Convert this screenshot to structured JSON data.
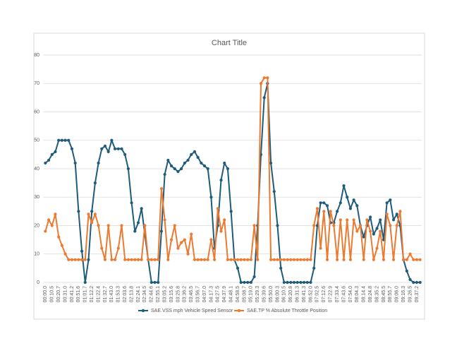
{
  "chart_data": {
    "type": "line",
    "title": "Chart Title",
    "categories": [
      "00:00.0",
      null,
      "00:10.5",
      null,
      "00:20.7",
      null,
      "00:31.0",
      null,
      "00:41.2",
      null,
      "00:51.6",
      null,
      "01:01.7",
      null,
      "01:12.2",
      null,
      "01:22.4",
      null,
      "01:32.7",
      null,
      "01:43.0",
      null,
      "01:53.3",
      null,
      "02:03.6",
      null,
      "02:13.8",
      null,
      "02:24.1",
      null,
      "02:34.5",
      null,
      "02:44.6",
      null,
      "02:55.1",
      null,
      "03:05.2",
      null,
      "03:15.6",
      null,
      "03:25.8",
      null,
      "03:36.2",
      null,
      "03:46.5",
      null,
      "03:56.7",
      null,
      "04:07.0",
      null,
      "04:17.3",
      null,
      "04:27.5",
      null,
      "04:37.9",
      null,
      "04:48.1",
      null,
      "04:58.5",
      null,
      "05:08.7",
      null,
      "05:19.0",
      null,
      "05:29.3",
      null,
      "05:39.6",
      null,
      "05:50.0",
      null,
      "06:00.3",
      null,
      "06:10.5",
      null,
      "06:20.8",
      null,
      "06:31.3",
      null,
      "06:41.3",
      null,
      "06:52.0",
      null,
      "07:02.5",
      null,
      "07:12.6",
      null,
      "07:22.9",
      null,
      "07:33.4",
      null,
      "07:43.6",
      null,
      "07:54.0",
      null,
      "08:04.3",
      null,
      "08:14.4",
      null,
      "08:24.8",
      null,
      "08:35.2",
      null,
      "08:45.5",
      null,
      "08:55.7",
      null,
      "09:06.0",
      null,
      "09:16.3",
      null,
      "09:26.5",
      null,
      "09:37.2",
      null
    ],
    "series": [
      {
        "name": "SAE.VSS mph Vehicle Speed Sensor",
        "color": "#1f5c7c",
        "values": [
          42,
          43,
          45,
          46,
          50,
          50,
          50,
          50,
          47,
          42,
          25,
          11,
          0,
          8,
          25,
          35,
          42,
          47,
          48,
          46,
          50,
          47,
          47,
          47,
          45,
          40,
          28,
          18,
          21,
          26,
          17,
          8,
          0,
          0,
          0,
          18,
          38,
          43,
          41,
          40,
          39,
          40,
          42,
          43,
          45,
          46,
          44,
          42,
          41,
          40,
          30,
          12,
          20,
          36,
          42,
          40,
          25,
          8,
          5,
          0,
          0,
          0,
          0,
          2,
          20,
          45,
          65,
          70,
          42,
          32,
          20,
          5,
          0,
          0,
          0,
          0,
          0,
          0,
          0,
          0,
          0,
          5,
          20,
          28,
          28,
          27,
          21,
          21,
          25,
          28,
          34,
          30,
          26,
          29,
          27,
          20,
          16,
          20,
          23,
          17,
          19,
          22,
          15,
          28,
          29,
          22,
          24,
          20,
          8,
          4,
          1,
          0,
          0,
          0
        ]
      },
      {
        "name": "SAE.TP % Absolute Throttle Position",
        "color": "#ec7a30",
        "values": [
          18,
          22,
          20,
          24,
          16,
          13,
          10,
          8,
          8,
          8,
          8,
          8,
          8,
          24,
          21,
          24,
          20,
          12,
          8,
          20,
          8,
          8,
          12,
          20,
          8,
          8,
          8,
          8,
          8,
          8,
          20,
          8,
          8,
          8,
          8,
          33,
          22,
          8,
          15,
          20,
          12,
          14,
          15,
          10,
          17,
          8,
          8,
          8,
          8,
          8,
          15,
          8,
          26,
          18,
          22,
          8,
          8,
          8,
          8,
          8,
          8,
          8,
          8,
          20,
          8,
          70,
          72,
          72,
          8,
          8,
          8,
          8,
          8,
          8,
          8,
          8,
          8,
          8,
          8,
          8,
          8,
          20,
          26,
          12,
          25,
          8,
          25,
          20,
          8,
          22,
          8,
          22,
          8,
          22,
          18,
          20,
          8,
          22,
          18,
          8,
          12,
          18,
          8,
          24,
          20,
          8,
          20,
          25,
          8,
          8,
          10,
          8,
          8,
          8
        ]
      }
    ],
    "ylim": [
      0,
      80
    ],
    "yticks": [
      0,
      10,
      20,
      30,
      40,
      50,
      60,
      70,
      80
    ],
    "grid": true,
    "legend": "bottom"
  }
}
